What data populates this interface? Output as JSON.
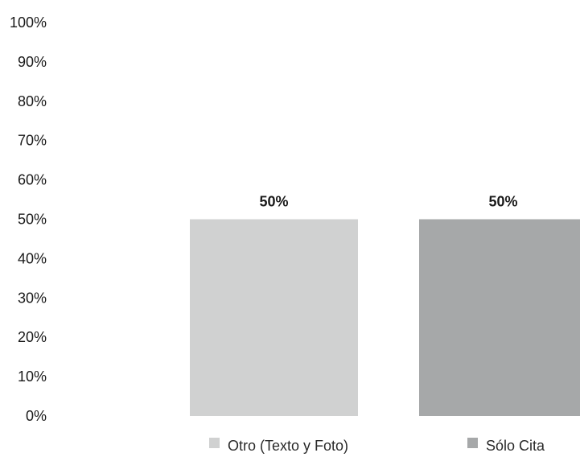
{
  "chart_data": {
    "type": "bar",
    "categories": [
      "Otro (Texto y Foto)",
      "Sólo Cita"
    ],
    "values": [
      50,
      50
    ],
    "data_labels": [
      "50%",
      "50%"
    ],
    "colors": [
      "#d0d1d1",
      "#a6a8a9"
    ],
    "ylim": [
      0,
      100
    ],
    "y_ticks": [
      0,
      10,
      20,
      30,
      40,
      50,
      60,
      70,
      80,
      90,
      100
    ],
    "y_tick_labels": [
      "0%",
      "10%",
      "20%",
      "30%",
      "40%",
      "50%",
      "60%",
      "70%",
      "80%",
      "90%",
      "100%"
    ],
    "grid": false,
    "legend": {
      "position": "bottom",
      "entries": [
        "Otro (Texto y Foto)",
        "Sólo Cita"
      ]
    }
  }
}
